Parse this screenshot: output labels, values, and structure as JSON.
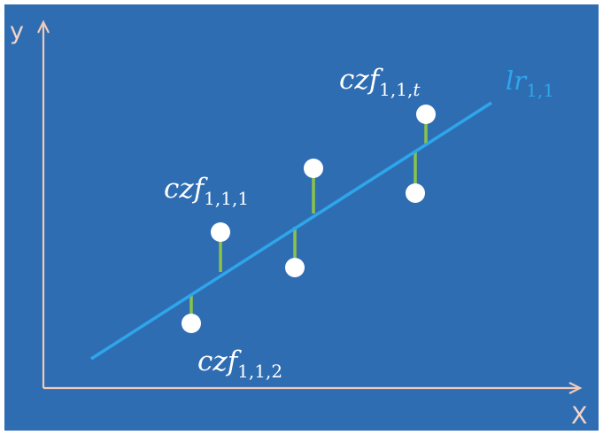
{
  "diagram": {
    "background_color": "#2f6db3",
    "axes": {
      "x_label": "X",
      "y_label": "y",
      "color": "#f2c9b6"
    },
    "regression_line": {
      "label_main": "lr",
      "label_sub": "1,1",
      "color": "#2ea6ea"
    },
    "residual_color": "#8bc34a",
    "point_color": "#ffffff",
    "annotations": [
      {
        "main": "czf",
        "sub_prefix": "1,1,",
        "sub_last": "1"
      },
      {
        "main": "czf",
        "sub_prefix": "1,1,",
        "sub_last": "2"
      },
      {
        "main": "czf",
        "sub_prefix": "1,1,",
        "sub_last": "t"
      }
    ]
  }
}
